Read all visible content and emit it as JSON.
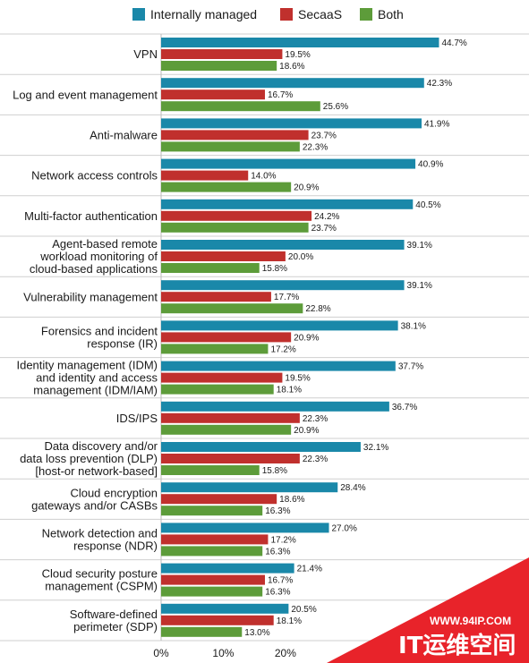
{
  "chart_data": {
    "type": "bar",
    "orientation": "horizontal",
    "categories": [
      "VPN",
      "Log and event management",
      "Anti-malware",
      "Network access controls",
      "Multi-factor authentication",
      "Agent-based remote workload monitoring of cloud-based applications",
      "Vulnerability management",
      "Forensics and incident response (IR)",
      "Identity management (IDM) and identity and access management (IDM/IAM)",
      "IDS/IPS",
      "Data discovery and/or data loss prevention (DLP) [host-or network-based]",
      "Cloud encryption gateways and/or CASBs",
      "Network detection and response (NDR)",
      "Cloud security posture management (CSPM)",
      "Software-defined perimeter (SDP)"
    ],
    "category_lines": [
      [
        "VPN"
      ],
      [
        "Log and event management"
      ],
      [
        "Anti-malware"
      ],
      [
        "Network access controls"
      ],
      [
        "Multi-factor authentication"
      ],
      [
        "Agent-based remote",
        "workload monitoring of",
        "cloud-based applications"
      ],
      [
        "Vulnerability management"
      ],
      [
        "Forensics and incident",
        "response (IR)"
      ],
      [
        "Identity management (IDM)",
        "and identity and access",
        "management (IDM/IAM)"
      ],
      [
        "IDS/IPS"
      ],
      [
        "Data discovery and/or",
        "data loss prevention (DLP)",
        "[host-or network-based]"
      ],
      [
        "Cloud encryption",
        "gateways and/or CASBs"
      ],
      [
        "Network detection and",
        "response (NDR)"
      ],
      [
        "Cloud security posture",
        "management (CSPM)"
      ],
      [
        "Software-defined",
        "perimeter (SDP)"
      ]
    ],
    "series": [
      {
        "name": "Internally managed",
        "color": "#1a88a9",
        "values": [
          44.7,
          42.3,
          41.9,
          40.9,
          40.5,
          39.1,
          39.1,
          38.1,
          37.7,
          36.7,
          32.1,
          28.4,
          27.0,
          21.4,
          20.5
        ]
      },
      {
        "name": "SecaaS",
        "color": "#c0302d",
        "values": [
          19.5,
          16.7,
          23.7,
          14.0,
          24.2,
          20.0,
          17.7,
          20.9,
          19.5,
          22.3,
          22.3,
          18.6,
          17.2,
          16.7,
          18.1
        ]
      },
      {
        "name": "Both",
        "color": "#5d9c3a",
        "values": [
          18.6,
          25.6,
          22.3,
          20.9,
          23.7,
          15.8,
          22.8,
          17.2,
          18.1,
          20.9,
          15.8,
          16.3,
          16.3,
          16.3,
          13.0
        ]
      }
    ],
    "value_labels": [
      [
        "44.7%",
        "42.3%",
        "41.9%",
        "40.9%",
        "40.5%",
        "39.1%",
        "39.1%",
        "38.1%",
        "37.7%",
        "36.7%",
        "32.1%",
        "28.4%",
        "27.0%",
        "21.4%",
        "20.5%"
      ],
      [
        "19.5%",
        "16.7%",
        "23.7%",
        "14.0%",
        "24.2%",
        "20.0%",
        "17.7%",
        "20.9%",
        "19.5%",
        "22.3%",
        "22.3%",
        "18.6%",
        "17.2%",
        "16.7%",
        "18.1%"
      ],
      [
        "18.6%",
        "25.6%",
        "22.3%",
        "20.9%",
        "23.7%",
        "15.8%",
        "22.8%",
        "17.2%",
        "18.1%",
        "20.9%",
        "15.8%",
        "16.3%",
        "16.3%",
        "16.3%",
        "13.0%"
      ]
    ],
    "xticks": [
      "0%",
      "10%",
      "20%"
    ],
    "xtick_values": [
      0,
      10,
      20
    ],
    "xlim": [
      0,
      55
    ],
    "legend_position": "top",
    "grid": false,
    "background_color": "#ffffff",
    "divider_color": "#cfcfcf"
  },
  "watermark": {
    "url": "WWW.94IP.COM",
    "name": "IT运维空间",
    "color": "#e8232a"
  }
}
